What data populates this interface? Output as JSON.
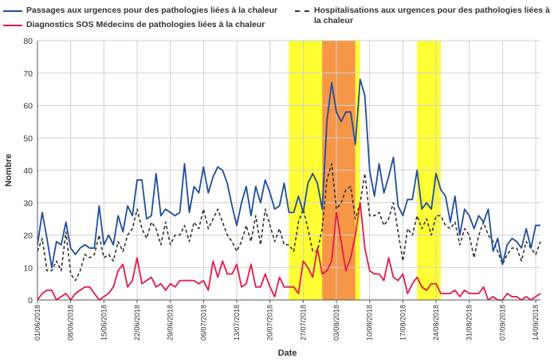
{
  "chart_data": {
    "type": "line",
    "xlabel": "Date",
    "ylabel": "Nombre",
    "ylim": [
      0,
      80
    ],
    "yticks": [
      0,
      10,
      20,
      30,
      40,
      50,
      60,
      70,
      80
    ],
    "grid": true,
    "legend_placement": "top",
    "x_start": "2018-06-01",
    "x_end": "2018-09-15",
    "x_tick_labels": [
      {
        "date": "2018-06-01",
        "label": "01/06/2018"
      },
      {
        "date": "2018-06-08",
        "label": "08/06/2018"
      },
      {
        "date": "2018-06-15",
        "label": "15/06/2018"
      },
      {
        "date": "2018-06-22",
        "label": "22/06/2018"
      },
      {
        "date": "2018-06-29",
        "label": "29/06/2018"
      },
      {
        "date": "2018-07-06",
        "label": "06/07/2018"
      },
      {
        "date": "2018-07-13",
        "label": "13/07/2018"
      },
      {
        "date": "2018-07-20",
        "label": "20/07/2018"
      },
      {
        "date": "2018-07-27",
        "label": "27/07/2018"
      },
      {
        "date": "2018-08-03",
        "label": "03/08/2018"
      },
      {
        "date": "2018-08-10",
        "label": "10/08/2018"
      },
      {
        "date": "2018-08-17",
        "label": "17/08/2018"
      },
      {
        "date": "2018-08-24",
        "label": "24/08/2018"
      },
      {
        "date": "2018-08-31",
        "label": "31/08/2018"
      },
      {
        "date": "2018-09-07",
        "label": "07/09/2018"
      },
      {
        "date": "2018-09-14",
        "label": "14/09/2018"
      }
    ],
    "bands": [
      {
        "from": "2018-07-24",
        "to": "2018-07-31",
        "color": "#ffff33"
      },
      {
        "from": "2018-07-31",
        "to": "2018-08-07",
        "color": "#f79646"
      },
      {
        "from": "2018-08-07",
        "to": "2018-08-08",
        "color": "#ffff33"
      },
      {
        "from": "2018-08-20",
        "to": "2018-08-25",
        "color": "#ffff33"
      }
    ],
    "series": [
      {
        "name": "Passages aux urgences pour des pathologies liées à la chaleur",
        "color": "#1f4e9c",
        "dash": "solid",
        "values": [
          17,
          27,
          19,
          10,
          18,
          17,
          24,
          16,
          14,
          16,
          17,
          16,
          16,
          29,
          17,
          20,
          17,
          26,
          21,
          29,
          26,
          37,
          37,
          25,
          26,
          39,
          26,
          28,
          27,
          26,
          27,
          42,
          27,
          35,
          33,
          41,
          33,
          38,
          41,
          40,
          36,
          29,
          23,
          30,
          35,
          26,
          35,
          30,
          37,
          33,
          28,
          29,
          36,
          27,
          27,
          32,
          27,
          36,
          39,
          36,
          28,
          55,
          67,
          58,
          55,
          58,
          58,
          48,
          68,
          63,
          40,
          32,
          42,
          33,
          38,
          44,
          29,
          26,
          31,
          31,
          40,
          28,
          30,
          28,
          39,
          34,
          32,
          24,
          32,
          20,
          28,
          26,
          22,
          26,
          24,
          28,
          15,
          19,
          11,
          17,
          19,
          18,
          16,
          22,
          16,
          23,
          23
        ]
      },
      {
        "name": "Hospitalisations aux urgences pour des pathologies liées à la chaleur",
        "color": "#333333",
        "dash": "dashed",
        "values": [
          15,
          19,
          9,
          9,
          12,
          9,
          21,
          8,
          6,
          9,
          14,
          13,
          14,
          20,
          13,
          14,
          12,
          18,
          15,
          20,
          22,
          28,
          22,
          19,
          24,
          22,
          17,
          24,
          17,
          20,
          20,
          23,
          18,
          24,
          22,
          28,
          22,
          25,
          28,
          24,
          20,
          18,
          15,
          18,
          23,
          18,
          26,
          17,
          28,
          23,
          18,
          22,
          17,
          17,
          15,
          24,
          28,
          22,
          15,
          15,
          22,
          37,
          42,
          28,
          30,
          34,
          35,
          25,
          30,
          39,
          26,
          26,
          27,
          23,
          25,
          30,
          21,
          12,
          22,
          20,
          26,
          22,
          25,
          20,
          26,
          26,
          23,
          22,
          24,
          17,
          22,
          20,
          13,
          20,
          24,
          20,
          18,
          15,
          11,
          14,
          16,
          16,
          12,
          18,
          16,
          14,
          18
        ]
      },
      {
        "name": "Diagnostics SOS Médecins de pathologies liées à la chaleur",
        "color": "#e6194b",
        "dash": "solid",
        "values": [
          0,
          2,
          3,
          3,
          0,
          1,
          2,
          0,
          2,
          3,
          4,
          4,
          2,
          0,
          1,
          2,
          4,
          9,
          11,
          4,
          6,
          13,
          5,
          6,
          7,
          4,
          5,
          3,
          5,
          4,
          6,
          6,
          6,
          6,
          5,
          6,
          3,
          12,
          7,
          12,
          8,
          8,
          11,
          4,
          5,
          11,
          4,
          4,
          8,
          4,
          1,
          7,
          4,
          4,
          4,
          2,
          12,
          10,
          7,
          16,
          8,
          9,
          12,
          27,
          18,
          9,
          13,
          20,
          30,
          16,
          9,
          8,
          8,
          6,
          13,
          7,
          6,
          8,
          2,
          5,
          7,
          4,
          3,
          5,
          5,
          2,
          2,
          2,
          3,
          1,
          3,
          2,
          2,
          2,
          4,
          0,
          1,
          0,
          0,
          2,
          1,
          1,
          0,
          1,
          0,
          1,
          2
        ]
      }
    ]
  }
}
